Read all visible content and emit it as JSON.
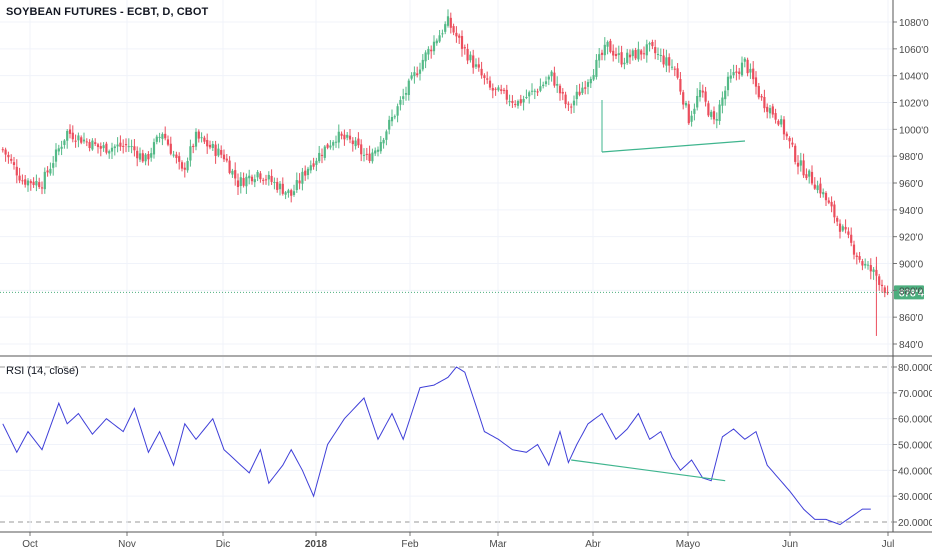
{
  "header": {
    "title": "SOYBEAN FUTURES - ECBT, D, CBOT"
  },
  "rsi_panel": {
    "title": "RSI (14, close)"
  },
  "colors": {
    "up": "#53b987",
    "down": "#eb4d5c",
    "rsi_line": "#3f3fd8",
    "divergence": "#3fb58e",
    "last_price": "#4cae7e",
    "grid": "#f0f3fa",
    "axis_text": "#4a4a4a"
  },
  "price_axis": {
    "ticks": [
      "1080'0",
      "1060'0",
      "1040'0",
      "1020'0",
      "1000'0",
      "980'0",
      "960'0",
      "940'0",
      "920'0",
      "900'0",
      "880'0",
      "860'0",
      "840'0"
    ],
    "last_label": "878'4"
  },
  "rsi_axis": {
    "ticks": [
      "80.0000",
      "70.0000",
      "60.0000",
      "50.0000",
      "40.0000",
      "30.0000",
      "20.0000"
    ]
  },
  "time_axis": {
    "labels": [
      "Oct",
      "Nov",
      "Dic",
      "2018",
      "Feb",
      "Mar",
      "Abr",
      "Mayo",
      "Jun",
      "Jul"
    ]
  },
  "chart_data": [
    {
      "type": "candlestick",
      "title": "SOYBEAN FUTURES - ECBT, D, CBOT",
      "x_labels": [
        "Oct",
        "Nov",
        "Dic",
        "2018",
        "Feb",
        "Mar",
        "Abr",
        "Mayo",
        "Jun",
        "Jul"
      ],
      "ylim": [
        835,
        1085
      ],
      "close_anchors": [
        [
          1,
          985
        ],
        [
          8,
          962
        ],
        [
          15,
          960
        ],
        [
          24,
          998
        ],
        [
          36,
          986
        ],
        [
          46,
          988
        ],
        [
          52,
          977
        ],
        [
          58,
          998
        ],
        [
          65,
          968
        ],
        [
          70,
          994
        ],
        [
          80,
          980
        ],
        [
          85,
          960
        ],
        [
          92,
          968
        ],
        [
          100,
          957
        ],
        [
          104,
          951
        ],
        [
          110,
          972
        ],
        [
          120,
          995
        ],
        [
          126,
          990
        ],
        [
          131,
          978
        ],
        [
          135,
          988
        ],
        [
          140,
          1008
        ],
        [
          148,
          1040
        ],
        [
          151,
          1052
        ],
        [
          156,
          1068
        ],
        [
          160,
          1080
        ],
        [
          165,
          1062
        ],
        [
          175,
          1030
        ],
        [
          185,
          1020
        ],
        [
          192,
          1030
        ],
        [
          197,
          1040
        ],
        [
          203,
          1015
        ],
        [
          210,
          1038
        ],
        [
          217,
          1062
        ],
        [
          222,
          1052
        ],
        [
          232,
          1060
        ],
        [
          241,
          1045
        ],
        [
          246,
          1008
        ],
        [
          250,
          1028
        ],
        [
          255,
          1005
        ],
        [
          260,
          1035
        ],
        [
          266,
          1050
        ],
        [
          272,
          1022
        ],
        [
          278,
          1008
        ],
        [
          285,
          975
        ],
        [
          293,
          955
        ],
        [
          300,
          928
        ],
        [
          308,
          900
        ],
        [
          313,
          891
        ],
        [
          317,
          878
        ]
      ],
      "last_close": 878.5,
      "grid": true
    },
    {
      "type": "line",
      "title": "RSI (14, close)",
      "ylim": [
        17,
        83
      ],
      "reference_lines": [
        80,
        20
      ],
      "anchors": [
        [
          1,
          58
        ],
        [
          6,
          47
        ],
        [
          10,
          55
        ],
        [
          15,
          48
        ],
        [
          21,
          66
        ],
        [
          24,
          58
        ],
        [
          28,
          62
        ],
        [
          33,
          54
        ],
        [
          38,
          60
        ],
        [
          44,
          55
        ],
        [
          48,
          64
        ],
        [
          53,
          47
        ],
        [
          57,
          55
        ],
        [
          62,
          42
        ],
        [
          66,
          58
        ],
        [
          70,
          52
        ],
        [
          76,
          60
        ],
        [
          80,
          48
        ],
        [
          84,
          44
        ],
        [
          89,
          39
        ],
        [
          93,
          48
        ],
        [
          96,
          35
        ],
        [
          101,
          42
        ],
        [
          104,
          48
        ],
        [
          108,
          40
        ],
        [
          112,
          30
        ],
        [
          117,
          50
        ],
        [
          123,
          60
        ],
        [
          130,
          68
        ],
        [
          135,
          52
        ],
        [
          140,
          62
        ],
        [
          144,
          52
        ],
        [
          150,
          72
        ],
        [
          155,
          73
        ],
        [
          160,
          76
        ],
        [
          163,
          80
        ],
        [
          166,
          78
        ],
        [
          170,
          65
        ],
        [
          173,
          55
        ],
        [
          178,
          52
        ],
        [
          183,
          48
        ],
        [
          188,
          47
        ],
        [
          192,
          50
        ],
        [
          196,
          42
        ],
        [
          200,
          55
        ],
        [
          203,
          43
        ],
        [
          206,
          50
        ],
        [
          210,
          58
        ],
        [
          215,
          62
        ],
        [
          220,
          52
        ],
        [
          224,
          56
        ],
        [
          228,
          62
        ],
        [
          232,
          52
        ],
        [
          236,
          55
        ],
        [
          240,
          45
        ],
        [
          243,
          40
        ],
        [
          247,
          44
        ],
        [
          251,
          37
        ],
        [
          254,
          36
        ],
        [
          258,
          53
        ],
        [
          262,
          56
        ],
        [
          266,
          52
        ],
        [
          270,
          55
        ],
        [
          274,
          42
        ],
        [
          278,
          37
        ],
        [
          282,
          32
        ],
        [
          287,
          25
        ],
        [
          291,
          21
        ],
        [
          295,
          21
        ],
        [
          300,
          19
        ],
        [
          304,
          22
        ],
        [
          308,
          25
        ],
        [
          311,
          25
        ]
      ],
      "divergence_line": [
        [
          204,
          44
        ],
        [
          259,
          36
        ]
      ]
    }
  ]
}
